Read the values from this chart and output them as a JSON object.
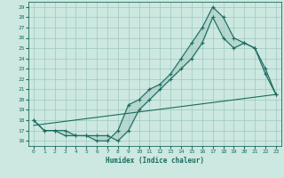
{
  "xlabel": "Humidex (Indice chaleur)",
  "bg_color": "#cce8e0",
  "line_color": "#1a6b5e",
  "grid_color": "#9ec8be",
  "xlim": [
    -0.5,
    23.5
  ],
  "ylim": [
    15.5,
    29.5
  ],
  "xticks": [
    0,
    1,
    2,
    3,
    4,
    5,
    6,
    7,
    8,
    9,
    10,
    11,
    12,
    13,
    14,
    15,
    16,
    17,
    18,
    19,
    20,
    21,
    22,
    23
  ],
  "yticks": [
    16,
    17,
    18,
    19,
    20,
    21,
    22,
    23,
    24,
    25,
    26,
    27,
    28,
    29
  ],
  "line1_x": [
    0,
    1,
    2,
    3,
    4,
    5,
    6,
    7,
    8,
    9,
    10,
    11,
    12,
    13,
    14,
    15,
    16,
    17,
    18,
    19,
    20,
    21,
    22,
    23
  ],
  "line1_y": [
    18,
    17,
    17,
    16.5,
    16.5,
    16.5,
    16,
    16,
    17,
    19.5,
    20,
    21,
    21.5,
    22.5,
    24,
    25.5,
    27,
    29,
    28,
    26,
    25.5,
    25,
    23,
    20.5
  ],
  "line2_x": [
    0,
    1,
    2,
    3,
    4,
    5,
    6,
    7,
    8,
    9,
    10,
    11,
    12,
    13,
    14,
    15,
    16,
    17,
    18,
    19,
    20,
    21,
    22,
    23
  ],
  "line2_y": [
    18,
    17,
    17,
    17,
    16.5,
    16.5,
    16.5,
    16.5,
    16,
    17,
    19,
    20,
    21,
    22,
    23,
    24,
    25.5,
    28,
    26,
    25,
    25.5,
    25,
    22.5,
    20.5
  ],
  "line3_x": [
    0,
    23
  ],
  "line3_y": [
    17.5,
    20.5
  ]
}
